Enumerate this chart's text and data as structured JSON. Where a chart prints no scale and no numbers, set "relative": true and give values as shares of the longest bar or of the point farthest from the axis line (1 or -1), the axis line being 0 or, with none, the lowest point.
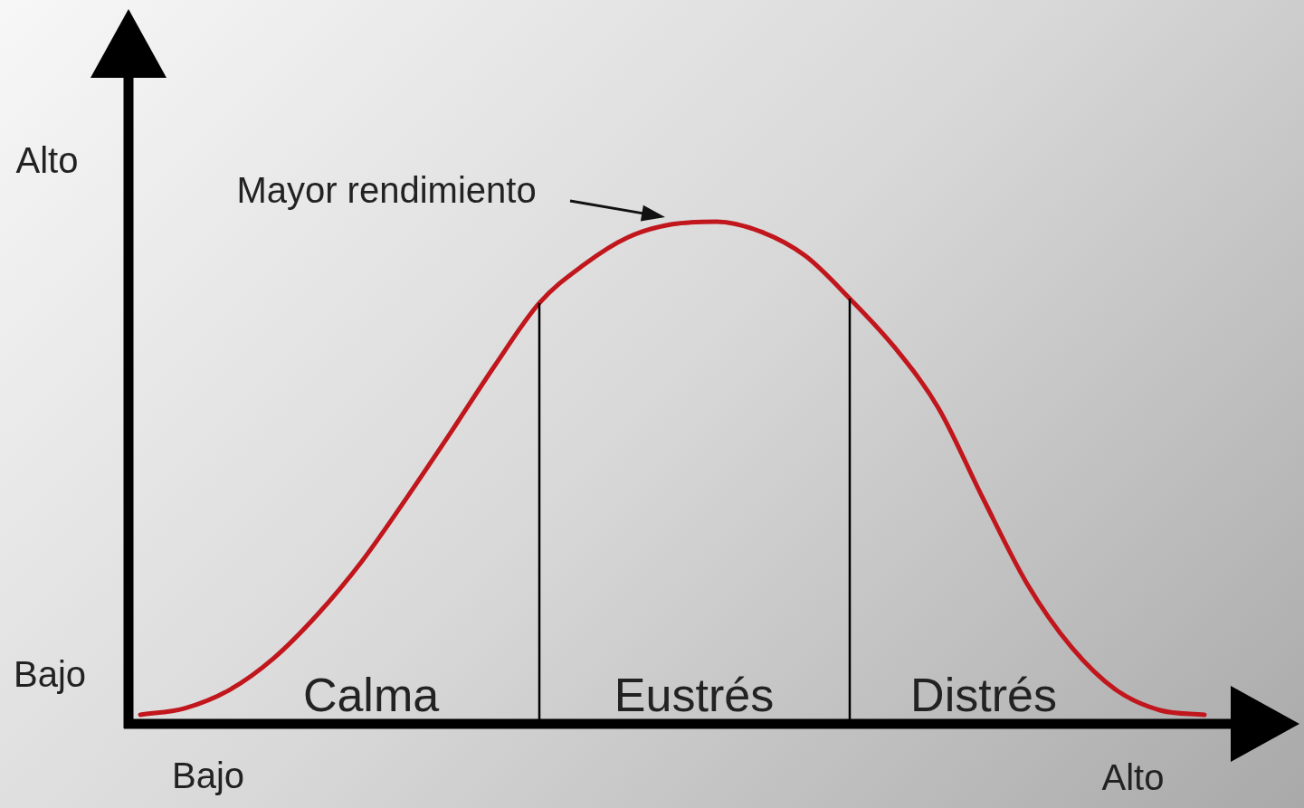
{
  "chart_data": {
    "type": "line",
    "relative": true,
    "categories": [
      null,
      null,
      null,
      null,
      null,
      null,
      null,
      null,
      null,
      null,
      null,
      null,
      null,
      null,
      null,
      null,
      null,
      null,
      null,
      null,
      null,
      null,
      null,
      null,
      null
    ],
    "series": [
      {
        "color": "#c0161c",
        "values": [
          0.018,
          0.031,
          0.067,
          0.13,
          0.218,
          0.324,
          0.449,
          0.58,
          0.714,
          0.838,
          0.914,
          0.969,
          0.995,
          1,
          0.98,
          0.932,
          0.847,
          0.751,
          0.629,
          0.45,
          0.279,
          0.153,
          0.068,
          0.027,
          0.018
        ]
      }
    ],
    "annotations": [
      "Alto",
      "Bajo",
      "Bajo",
      "Alto",
      "Calma",
      "Eustrés",
      "Distrés",
      "Mayor rendimiento"
    ],
    "legend": false
  }
}
